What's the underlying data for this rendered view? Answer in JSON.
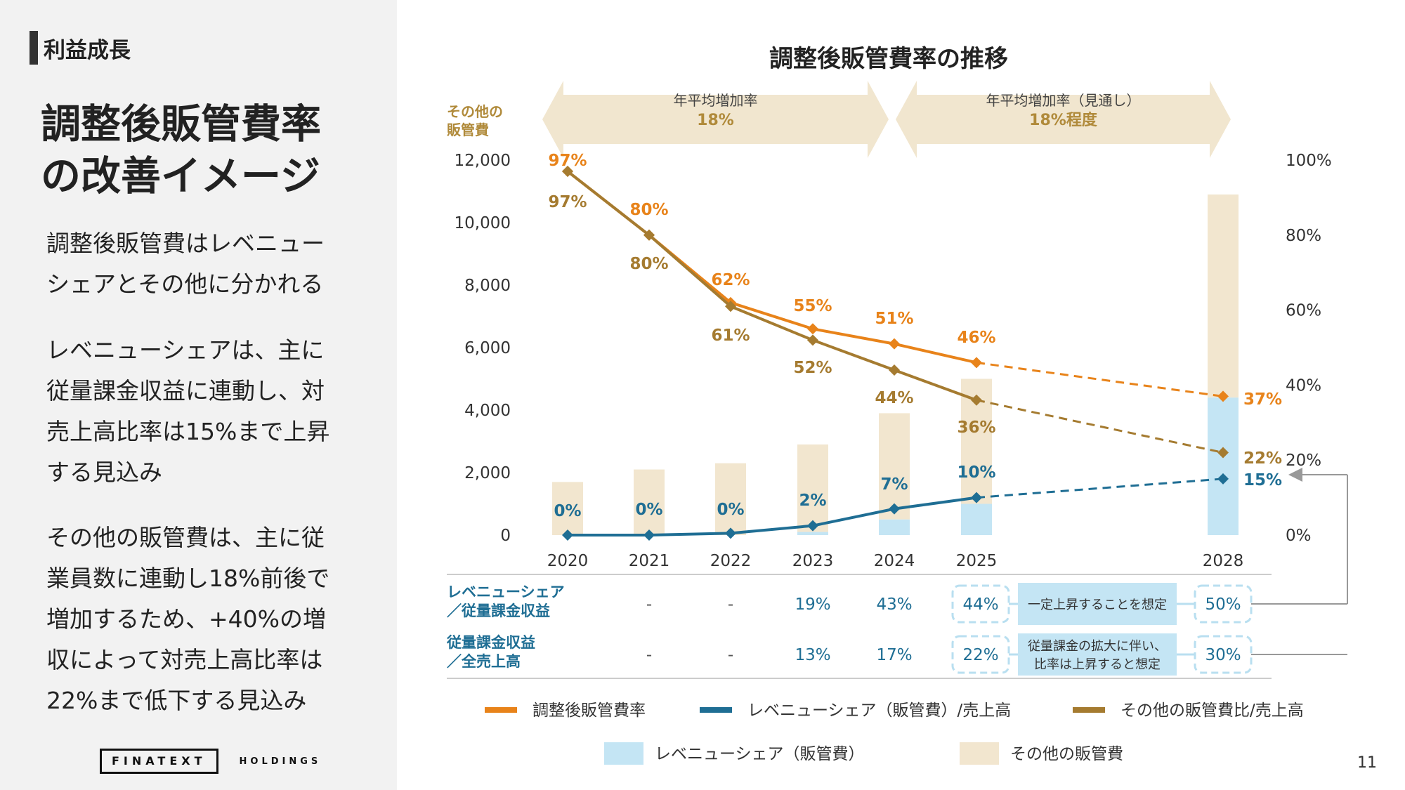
{
  "sidebar": {
    "section": "利益成長",
    "title_lines": [
      "調整後販管費率",
      "の改善イメージ"
    ],
    "paragraphs": [
      [
        "調整後販管費はレベニュー",
        "シェアとその他に分かれる"
      ],
      [
        "レベニューシェアは、主に",
        "従量課金収益に連動し、対",
        "売上高比率は15%まで上昇",
        "する見込み"
      ],
      [
        "その他の販管費は、主に従",
        "業員数に連動し18%前後で",
        "増加するため、+40%の増",
        "収によって対売上高比率は",
        "22%まで低下する見込み"
      ]
    ],
    "logo": "FINATEXT",
    "logo_sub": "HOLDINGS"
  },
  "page_number": "11",
  "colors": {
    "orange": "#e8831a",
    "teal": "#1f6e94",
    "brown": "#a57b30",
    "light_blue": "#c4e5f4",
    "beige": "#f2e6cf",
    "arrow": "#f1e6cf",
    "tan_text": "#b08a3a",
    "gray_text": "#555555"
  },
  "chart_data": {
    "type": "bar+line",
    "title": "調整後販管費率の推移",
    "left_axis_label": [
      "その他の",
      "販管費"
    ],
    "left_axis_ticks": [
      "12,000",
      "10,000",
      "8,000",
      "6,000",
      "4,000",
      "2,000",
      "0"
    ],
    "right_axis_ticks": [
      "100%",
      "80%",
      "60%",
      "40%",
      "20%",
      "0%"
    ],
    "ylim_left": [
      0,
      12000
    ],
    "ylim_right": [
      0,
      100
    ],
    "categories": [
      "2020",
      "2021",
      "2022",
      "2023",
      "2024",
      "2025",
      "2028"
    ],
    "bars": {
      "revenue_share": [
        0,
        0,
        0,
        100,
        500,
        1000,
        4400
      ],
      "other_sga": [
        1700,
        2100,
        2300,
        2800,
        3400,
        4000,
        6500
      ]
    },
    "lines": [
      {
        "name": "調整後販管費率",
        "values": [
          97,
          80,
          62,
          55,
          51,
          46,
          37
        ],
        "labels": [
          "97%",
          "80%",
          "62%",
          "55%",
          "51%",
          "46%",
          "37%"
        ]
      },
      {
        "name": "レベニューシェア（販管費）/売上高",
        "values": [
          0,
          0,
          0.5,
          2.5,
          7,
          10,
          15
        ],
        "labels": [
          "0%",
          "0%",
          "0%",
          "2%",
          "7%",
          "10%",
          "15%"
        ]
      },
      {
        "name": "その他の販管費比/売上高",
        "values": [
          97,
          80,
          61,
          52,
          44,
          36,
          22
        ],
        "labels": [
          "97%",
          "80%",
          "61%",
          "52%",
          "44%",
          "36%",
          "22%"
        ]
      }
    ],
    "cagr_arrows": [
      {
        "label": "年平均増加率",
        "value": "18%"
      },
      {
        "label": "年平均増加率（見通し）",
        "value": "18%程度"
      }
    ],
    "table": {
      "rows": [
        {
          "label": [
            "レベニューシェア",
            "／従量課金収益"
          ],
          "values": [
            "-",
            "-",
            "19%",
            "43%",
            "44%",
            "50%"
          ],
          "note": [
            "一定上昇することを想定"
          ]
        },
        {
          "label": [
            "従量課金収益",
            "／全売上高"
          ],
          "values": [
            "-",
            "-",
            "13%",
            "17%",
            "22%",
            "30%"
          ],
          "note": [
            "従量課金の拡大に伴い、",
            "比率は上昇すると想定"
          ]
        }
      ]
    },
    "legend": {
      "lines": [
        "調整後販管費率",
        "レベニューシェア（販管費）/売上高",
        "その他の販管費比/売上高"
      ],
      "bars": [
        "レベニューシェア（販管費）",
        "その他の販管費"
      ]
    }
  }
}
